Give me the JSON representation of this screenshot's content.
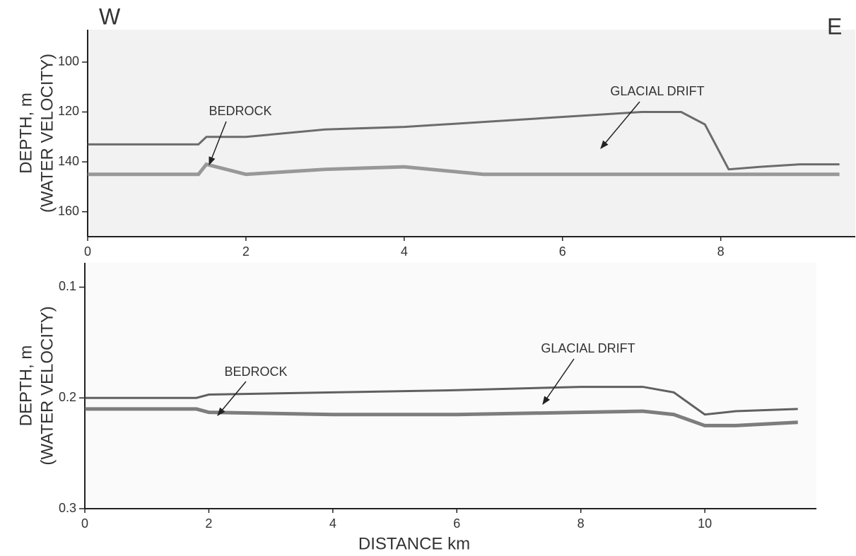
{
  "chart_data": [
    {
      "type": "line",
      "direction_labels": [
        "W",
        "E"
      ],
      "ylabel": [
        "DEPTH, m",
        "(WATER VELOCITY)"
      ],
      "annotations": [
        "BEDROCK",
        "GLACIAL DRIFT"
      ],
      "x": [
        0,
        1.4,
        1.5,
        2,
        3,
        4,
        5,
        6,
        7,
        7.5,
        7.8,
        8.1,
        8.5,
        9,
        9.5
      ],
      "series": [
        {
          "color": "#555555",
          "values": [
            133,
            133,
            130,
            130,
            127,
            126,
            124,
            122,
            120,
            120,
            125,
            143,
            142,
            141,
            141
          ]
        },
        {
          "color": "#888888",
          "values": [
            145,
            145,
            141,
            145,
            143,
            142,
            145,
            145,
            145,
            145,
            145,
            145,
            145,
            145,
            145
          ]
        }
      ],
      "xlim": [
        0,
        9.7
      ],
      "ylim": [
        87,
        170
      ],
      "inverted": true,
      "xticks": [
        0,
        2,
        4,
        6,
        8
      ],
      "yticks": [
        100,
        120,
        140,
        160
      ]
    },
    {
      "type": "line",
      "ylabel": [
        "DEPTH, m",
        "(WATER VELOCITY)"
      ],
      "xlabel": "DISTANCE  km",
      "annotations": [
        "BEDROCK",
        "GLACIAL DRIFT"
      ],
      "x": [
        0,
        1.8,
        2,
        4,
        6,
        8,
        9,
        9.5,
        10,
        10.5,
        11.5
      ],
      "series": [
        {
          "color": "#444444",
          "values": [
            0.2,
            0.2,
            0.197,
            0.195,
            0.193,
            0.19,
            0.19,
            0.195,
            0.215,
            0.212,
            0.21
          ]
        },
        {
          "color": "#666666",
          "values": [
            0.21,
            0.21,
            0.213,
            0.215,
            0.215,
            0.213,
            0.212,
            0.215,
            0.225,
            0.225,
            0.222
          ]
        }
      ],
      "xlim": [
        0,
        11.8
      ],
      "ylim": [
        0.078,
        0.3
      ],
      "inverted": true,
      "xticks": [
        0,
        2,
        4,
        6,
        8,
        10
      ],
      "yticks": [
        0.1,
        0.2,
        0.3
      ]
    }
  ]
}
